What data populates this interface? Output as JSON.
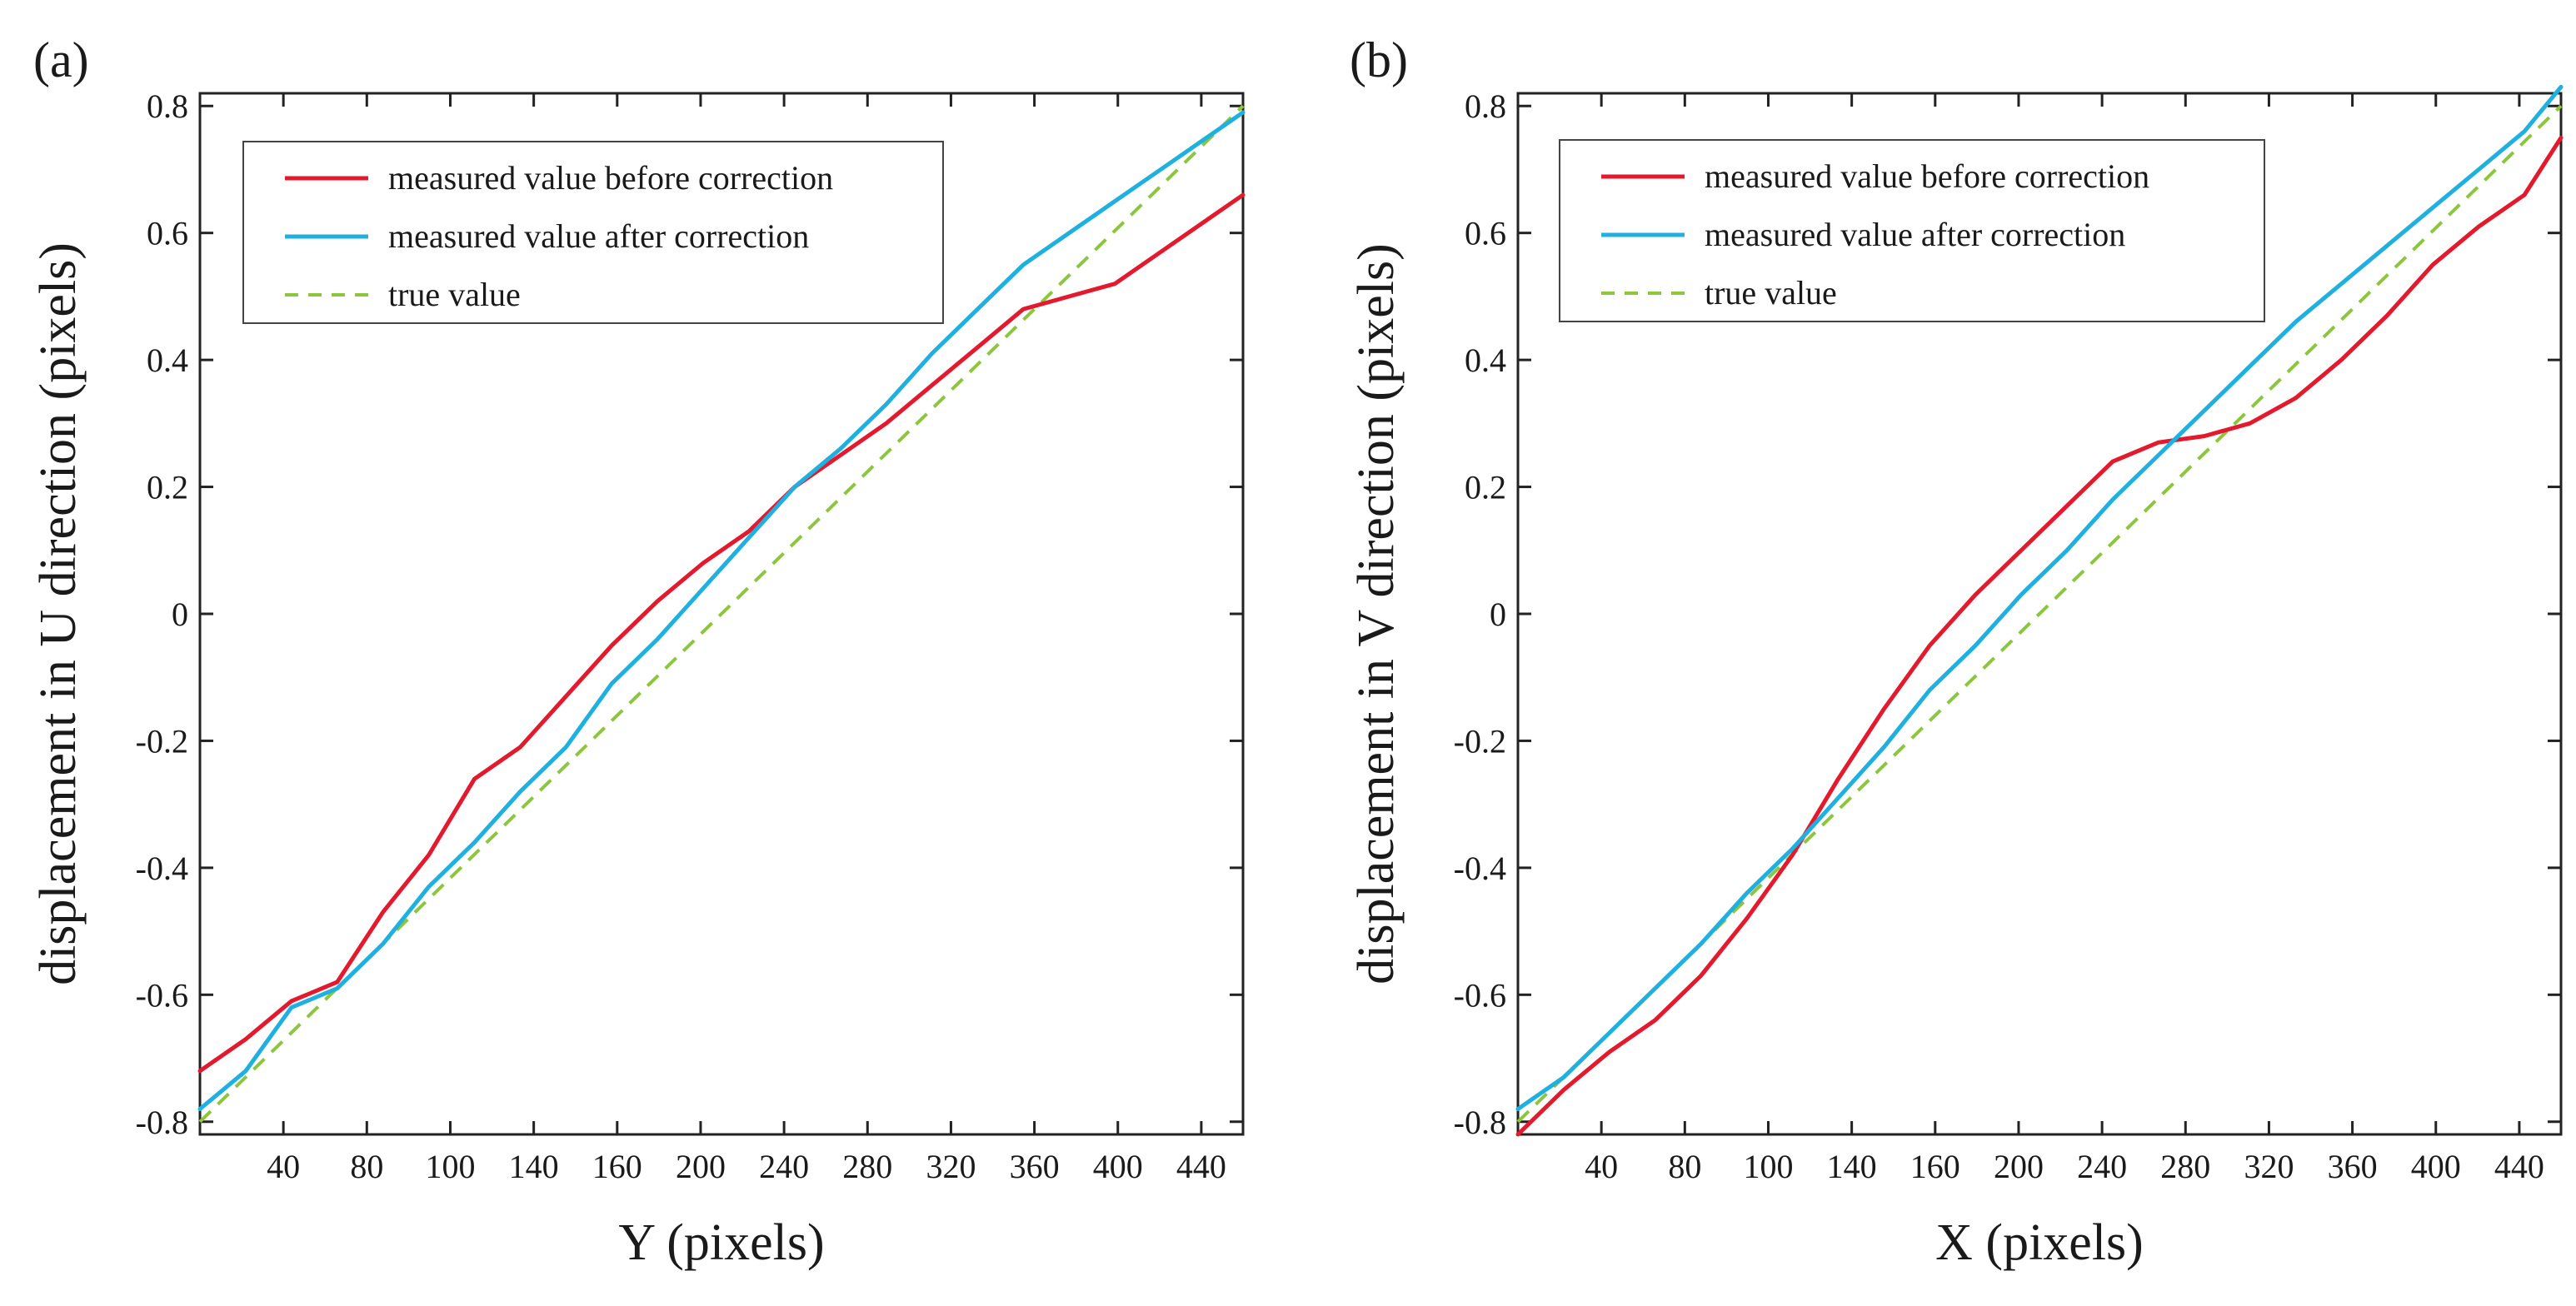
{
  "chart_data": [
    {
      "type": "line",
      "panel_label": "(a)",
      "title": "",
      "xlabel": "Y (pixels)",
      "ylabel": "displacement in U direction (pixels)",
      "xlim": [
        0,
        456
      ],
      "ylim": [
        -0.82,
        0.82
      ],
      "x_ticks": [
        "40",
        "80",
        "100",
        "140",
        "160",
        "200",
        "240",
        "280",
        "320",
        "360",
        "400",
        "440"
      ],
      "y_ticks": [
        "-0.8",
        "-0.6",
        "-0.4",
        "-0.2",
        "0",
        "0.2",
        "0.4",
        "0.6",
        "0.8"
      ],
      "legend_position": "top-left",
      "series": [
        {
          "name": "measured value before correction",
          "color": "#e31a2e",
          "dash": "solid",
          "x": [
            0,
            20,
            40,
            60,
            80,
            100,
            120,
            140,
            160,
            180,
            200,
            220,
            240,
            260,
            280,
            300,
            320,
            340,
            360,
            380,
            400,
            420,
            440,
            456
          ],
          "y": [
            -0.72,
            -0.67,
            -0.61,
            -0.58,
            -0.47,
            -0.38,
            -0.26,
            -0.21,
            -0.13,
            -0.05,
            0.02,
            0.08,
            0.13,
            0.2,
            0.25,
            0.3,
            0.36,
            0.42,
            0.48,
            0.5,
            0.52,
            0.57,
            0.62,
            0.66
          ]
        },
        {
          "name": "measured value after correction",
          "color": "#1fb0e0",
          "dash": "solid",
          "x": [
            0,
            20,
            40,
            60,
            80,
            100,
            120,
            140,
            160,
            180,
            200,
            220,
            240,
            260,
            280,
            300,
            320,
            340,
            360,
            380,
            400,
            420,
            440,
            456
          ],
          "y": [
            -0.78,
            -0.72,
            -0.62,
            -0.59,
            -0.52,
            -0.43,
            -0.36,
            -0.28,
            -0.21,
            -0.11,
            -0.04,
            0.04,
            0.12,
            0.2,
            0.26,
            0.33,
            0.41,
            0.48,
            0.55,
            0.6,
            0.65,
            0.7,
            0.75,
            0.79
          ]
        },
        {
          "name": "true value",
          "color": "#8cc63f",
          "dash": "dashed",
          "x": [
            0,
            456
          ],
          "y": [
            -0.8,
            0.8
          ]
        }
      ]
    },
    {
      "type": "line",
      "panel_label": "(b)",
      "title": "",
      "xlabel": "X (pixels)",
      "ylabel": "displacement in V direction (pixels)",
      "xlim": [
        0,
        456
      ],
      "ylim": [
        -0.82,
        0.82
      ],
      "x_ticks": [
        "40",
        "80",
        "100",
        "140",
        "160",
        "200",
        "240",
        "280",
        "320",
        "360",
        "400",
        "440"
      ],
      "y_ticks": [
        "-0.8",
        "-0.6",
        "-0.4",
        "-0.2",
        "0",
        "0.2",
        "0.4",
        "0.6",
        "0.8"
      ],
      "legend_position": "top-left",
      "series": [
        {
          "name": "measured value before correction",
          "color": "#e31a2e",
          "dash": "solid",
          "x": [
            0,
            20,
            40,
            60,
            80,
            100,
            120,
            140,
            160,
            180,
            200,
            220,
            240,
            260,
            280,
            300,
            320,
            340,
            360,
            380,
            400,
            420,
            440,
            456
          ],
          "y": [
            -0.82,
            -0.75,
            -0.69,
            -0.64,
            -0.57,
            -0.48,
            -0.38,
            -0.26,
            -0.15,
            -0.05,
            0.03,
            0.1,
            0.17,
            0.24,
            0.27,
            0.28,
            0.3,
            0.34,
            0.4,
            0.47,
            0.55,
            0.61,
            0.66,
            0.75
          ]
        },
        {
          "name": "measured value after correction",
          "color": "#1fb0e0",
          "dash": "solid",
          "x": [
            0,
            20,
            40,
            60,
            80,
            100,
            120,
            140,
            160,
            180,
            200,
            220,
            240,
            260,
            280,
            300,
            320,
            340,
            360,
            380,
            400,
            420,
            440,
            456
          ],
          "y": [
            -0.78,
            -0.73,
            -0.66,
            -0.59,
            -0.52,
            -0.44,
            -0.37,
            -0.29,
            -0.21,
            -0.12,
            -0.05,
            0.03,
            0.1,
            0.18,
            0.25,
            0.32,
            0.39,
            0.46,
            0.52,
            0.58,
            0.64,
            0.7,
            0.76,
            0.83
          ]
        },
        {
          "name": "true value",
          "color": "#8cc63f",
          "dash": "dashed",
          "x": [
            0,
            456
          ],
          "y": [
            -0.8,
            0.8
          ]
        }
      ]
    }
  ]
}
